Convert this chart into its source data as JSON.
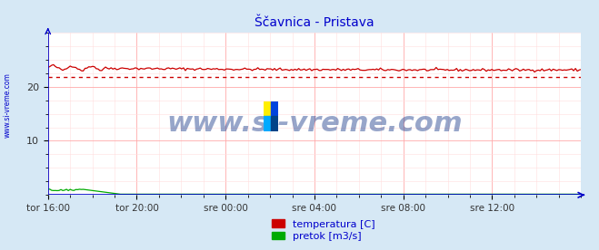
{
  "title": "Ščavnica - Pristava",
  "title_color": "#0000cc",
  "title_fontsize": 10,
  "bg_color": "#d6e8f5",
  "plot_bg_color": "#ffffff",
  "x_labels": [
    "tor 16:00",
    "tor 20:00",
    "sre 00:00",
    "sre 04:00",
    "sre 08:00",
    "sre 12:00"
  ],
  "ylim": [
    0,
    30
  ],
  "yticks": [
    10,
    20
  ],
  "grid_color": "#ffaaaa",
  "grid_color_minor": "#ffdddd",
  "temp_color": "#cc0000",
  "flow_color": "#00aa00",
  "axis_color": "#0000cc",
  "temp_avg": 21.8,
  "watermark": "www.si-vreme.com",
  "watermark_color": "#1a3a8a",
  "watermark_fontsize": 22,
  "left_label": "www.si-vreme.com",
  "left_label_color": "#0000cc",
  "legend_temp_label": "temperatura [C]",
  "legend_flow_label": "pretok [m3/s]",
  "n_points": 288
}
